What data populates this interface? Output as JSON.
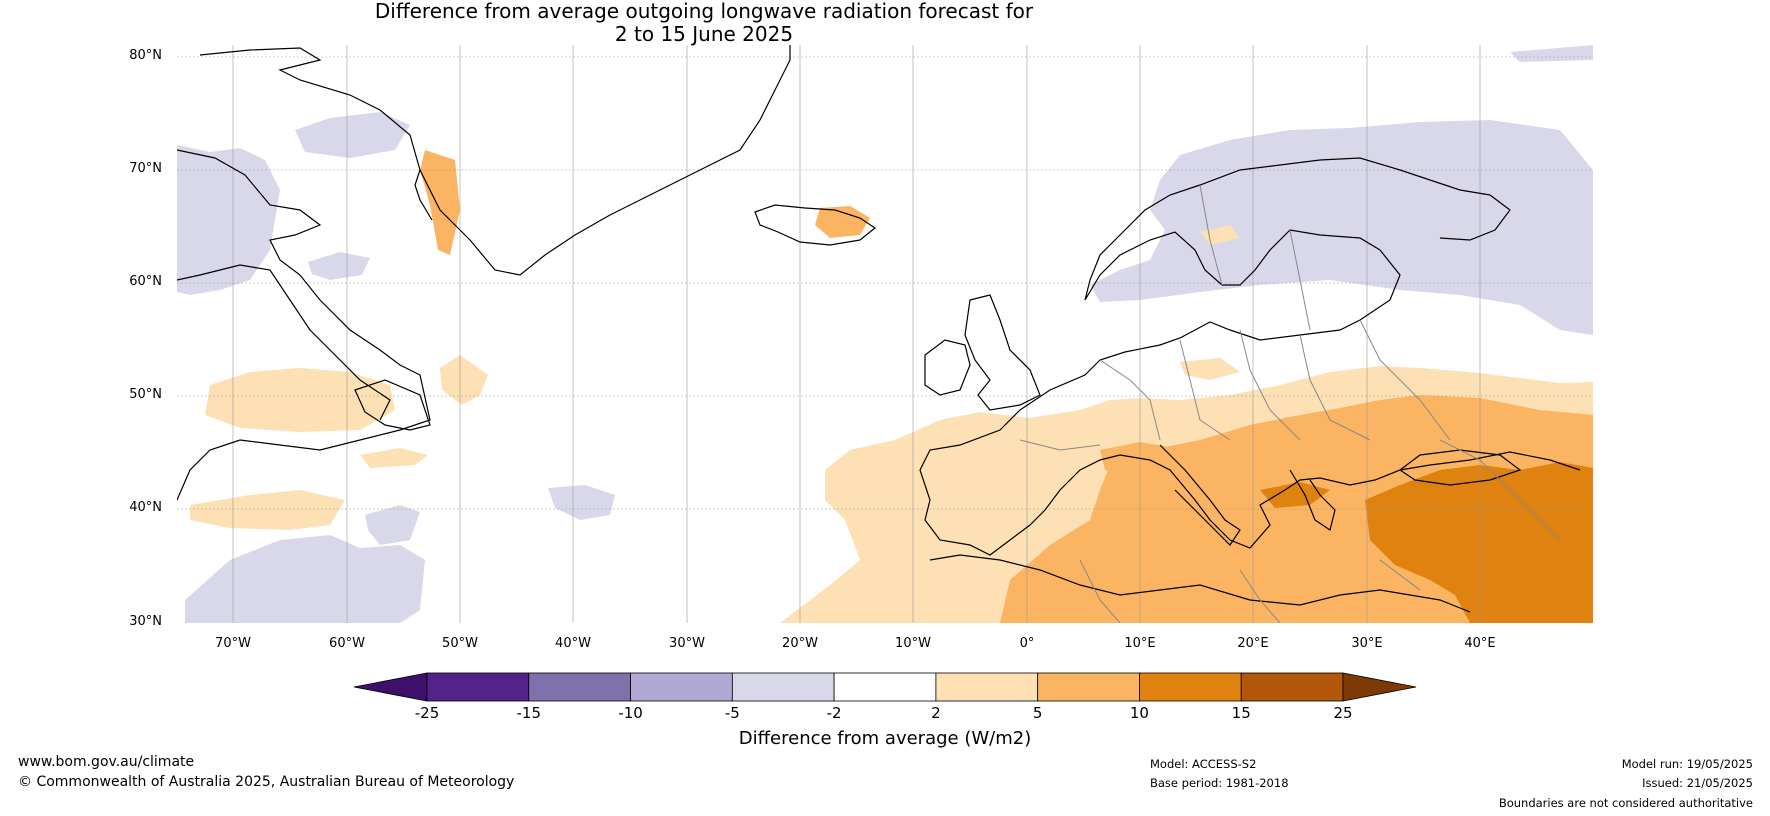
{
  "title": {
    "line1": "Difference from average outgoing longwave radiation forecast for",
    "line2": "2 to 15 June 2025"
  },
  "map": {
    "lat_labels": [
      "80°N",
      "70°N",
      "60°N",
      "50°N",
      "40°N",
      "30°N"
    ],
    "lon_labels": [
      "70°W",
      "60°W",
      "50°W",
      "40°W",
      "30°W",
      "20°W",
      "10°W",
      "0°",
      "10°E",
      "20°E",
      "30°E",
      "40°E"
    ],
    "extent": {
      "lon": [
        -75,
        50
      ],
      "lat": [
        30,
        81
      ]
    }
  },
  "colorbar": {
    "ticks": [
      "-25",
      "-15",
      "-10",
      "-5",
      "-2",
      "2",
      "5",
      "10",
      "15",
      "25"
    ],
    "colors": [
      "#3f0f6a",
      "#55228a",
      "#8071ad",
      "#b1a9d3",
      "#d9d8ea",
      "#ffffff",
      "#fde0b4",
      "#fbb562",
      "#e0820f",
      "#b3570b",
      "#7e3a06"
    ],
    "label": "Difference from average (W/m2)"
  },
  "footer": {
    "website": "www.bom.gov.au/climate",
    "copyright": "© Commonwealth of Australia 2025, Australian Bureau of Meteorology",
    "model": "Model: ACCESS-S2",
    "base_period": "Base period: 1981-2018",
    "model_run": "Model run: 19/05/2025",
    "issued": "Issued: 21/05/2025",
    "disclaimer": "Boundaries are not considered authoritative"
  }
}
